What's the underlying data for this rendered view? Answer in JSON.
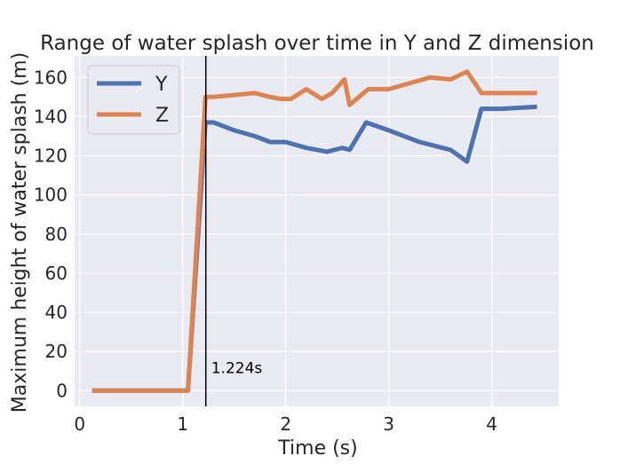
{
  "chart_data": {
    "type": "line",
    "title": "Range of water splash over time in Y and Z dimension",
    "xlabel": "Time (s)",
    "ylabel": "Maximum height of water splash (m)",
    "xlim": [
      -0.05,
      4.65
    ],
    "ylim": [
      -8,
      171
    ],
    "xticks": [
      0,
      1,
      2,
      3,
      4
    ],
    "yticks": [
      0,
      20,
      40,
      60,
      80,
      100,
      120,
      140,
      160
    ],
    "grid": true,
    "legend_position": "top-left",
    "series": [
      {
        "name": "Y",
        "color": "#4c72b0",
        "x": [
          0.12,
          1.05,
          1.22,
          1.3,
          1.5,
          1.7,
          1.85,
          2.0,
          2.2,
          2.4,
          2.55,
          2.62,
          2.78,
          3.0,
          3.3,
          3.6,
          3.76,
          3.9,
          4.1,
          4.44
        ],
        "y": [
          0,
          0,
          137,
          137,
          133,
          130,
          127,
          127,
          124,
          122,
          124,
          123,
          137,
          133,
          127,
          123,
          117,
          144,
          144,
          145
        ]
      },
      {
        "name": "Z",
        "color": "#dd8452",
        "x": [
          0.12,
          1.05,
          1.22,
          1.3,
          1.5,
          1.7,
          1.85,
          1.95,
          2.05,
          2.2,
          2.35,
          2.45,
          2.57,
          2.62,
          2.8,
          3.0,
          3.2,
          3.4,
          3.6,
          3.76,
          3.9,
          4.1,
          4.44
        ],
        "y": [
          0,
          0,
          150,
          150,
          151,
          152,
          150,
          149,
          149,
          154,
          149,
          152,
          159,
          146,
          154,
          154,
          157,
          160,
          159,
          163,
          152,
          152,
          152
        ]
      }
    ],
    "annotation": {
      "label": "1.224s",
      "x": 1.224
    }
  },
  "colors": {
    "plot_bg": "#eaeaf2",
    "grid": "#ffffff",
    "vline": "#000000"
  }
}
